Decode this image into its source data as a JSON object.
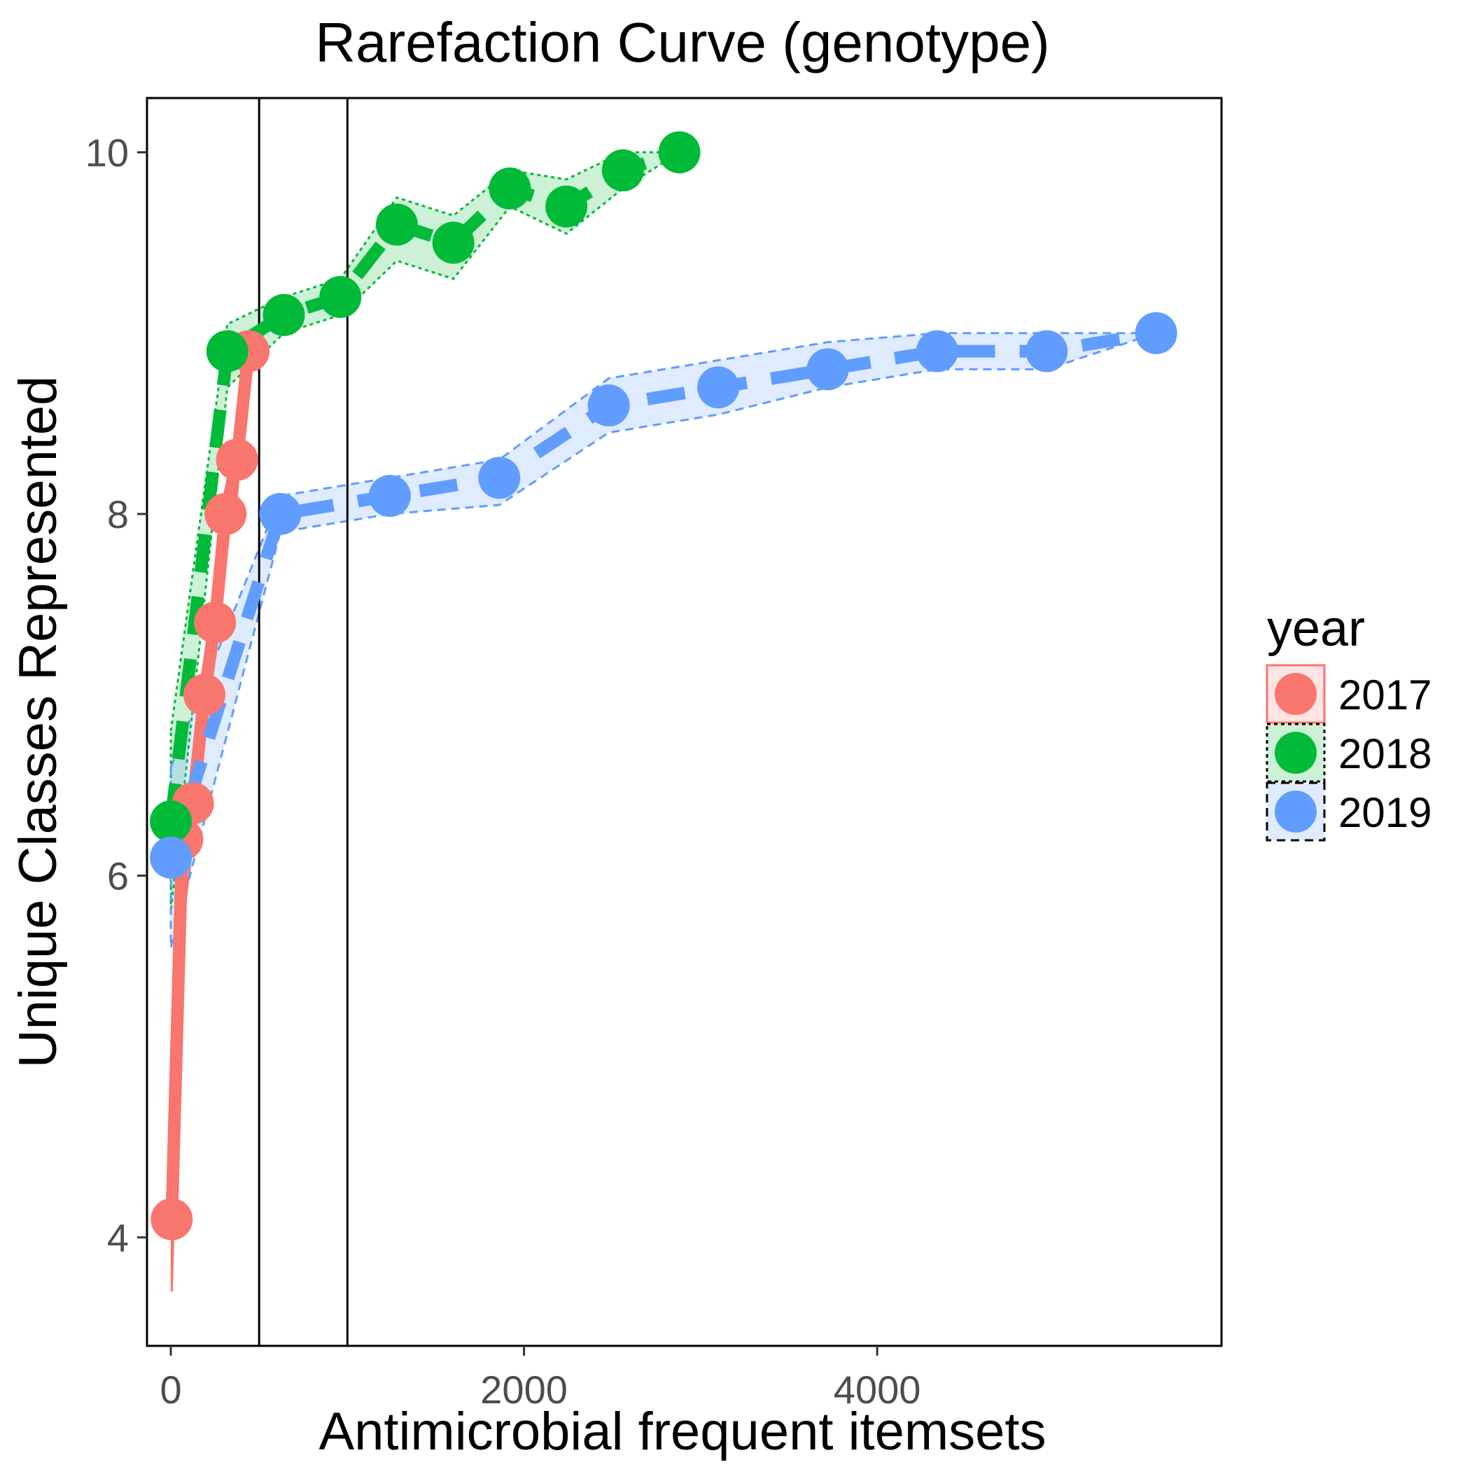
{
  "chart_data": {
    "type": "line",
    "title": "Rarefaction Curve (genotype)",
    "xlabel": "Antimicrobial frequent itemsets",
    "ylabel": "Unique Classes Represented",
    "xlim": [
      -135,
      5950
    ],
    "ylim": [
      3.4,
      10.3
    ],
    "x_ticks": [
      0,
      2000,
      4000
    ],
    "x_tick_labels": [
      "0",
      "2000",
      "4000"
    ],
    "y_ticks": [
      4,
      6,
      8,
      10
    ],
    "y_tick_labels": [
      "4",
      "6",
      "8",
      "10"
    ],
    "grid": false,
    "vertical_reference_lines": [
      500,
      1000
    ],
    "legend": {
      "title": "year",
      "position": "right",
      "entries": [
        "2017",
        "2018",
        "2019"
      ]
    },
    "series": [
      {
        "name": "2017",
        "color": "#F8766D",
        "linestyle": "solid",
        "x": [
          5,
          65,
          125,
          190,
          250,
          310,
          375,
          440
        ],
        "y": [
          4.1,
          6.2,
          6.4,
          7.0,
          7.4,
          8.0,
          8.3,
          8.9
        ],
        "lower": [
          3.7,
          5.7,
          6.2,
          6.8,
          7.2,
          7.8,
          8.1,
          8.9
        ],
        "upper": [
          4.5,
          6.3,
          6.5,
          7.1,
          7.5,
          8.1,
          8.4,
          9.0
        ]
      },
      {
        "name": "2018",
        "color": "#00BA38",
        "linestyle": "dashed",
        "x": [
          0,
          320,
          640,
          960,
          1280,
          1600,
          1920,
          2240,
          2560,
          2880
        ],
        "y": [
          6.3,
          8.9,
          9.1,
          9.2,
          9.6,
          9.5,
          9.8,
          9.7,
          9.9,
          10.0
        ],
        "lower": [
          5.8,
          8.7,
          9.0,
          9.1,
          9.4,
          9.3,
          9.7,
          9.55,
          9.8,
          10.0
        ],
        "upper": [
          6.8,
          9.05,
          9.2,
          9.3,
          9.75,
          9.65,
          9.9,
          9.85,
          10.0,
          10.0
        ]
      },
      {
        "name": "2019",
        "color": "#619CFF",
        "linestyle": "dashed",
        "x": [
          0,
          620,
          1240,
          1860,
          2480,
          3100,
          3720,
          4340,
          4960,
          5580
        ],
        "y": [
          6.1,
          8.0,
          8.1,
          8.2,
          8.6,
          8.7,
          8.8,
          8.9,
          8.9,
          9.0
        ],
        "lower": [
          5.6,
          7.9,
          8.0,
          8.05,
          8.45,
          8.55,
          8.7,
          8.8,
          8.8,
          9.0
        ],
        "upper": [
          6.6,
          8.1,
          8.2,
          8.3,
          8.75,
          8.85,
          8.95,
          9.0,
          9.0,
          9.0
        ]
      }
    ]
  }
}
